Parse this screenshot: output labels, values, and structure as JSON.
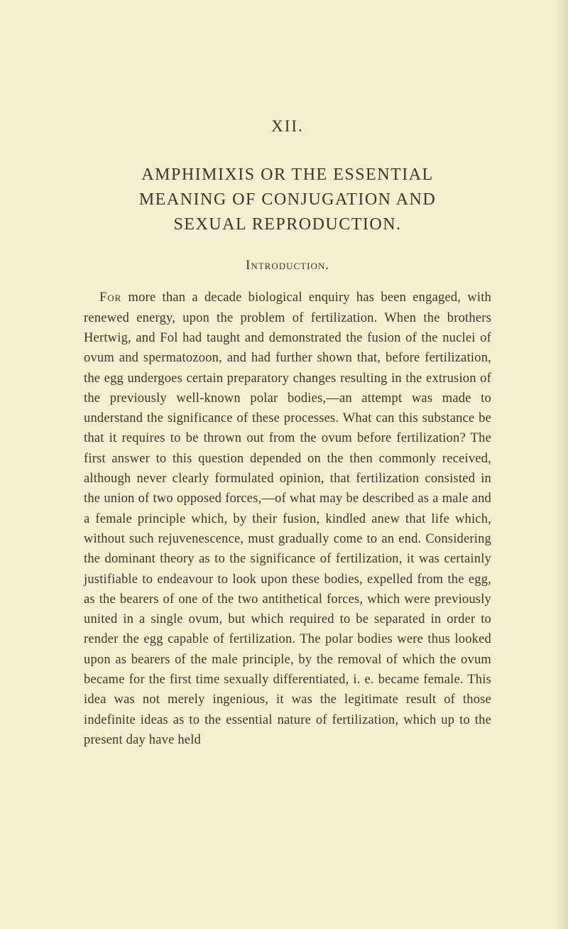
{
  "page": {
    "background_color": "#f5efd2",
    "text_color": "#3a3628",
    "font_family": "Georgia, 'Times New Roman', serif"
  },
  "chapter_number": "XII.",
  "title_line1": "AMPHIMIXIS OR THE ESSENTIAL",
  "title_line2": "MEANING OF CONJUGATION AND",
  "title_line3": "SEXUAL REPRODUCTION.",
  "subtitle": "Introduction.",
  "first_word": "For",
  "body_text": " more than a decade biological enquiry has been engaged, with renewed energy, upon the problem of fertilization. When the brothers Hertwig, and Fol had taught and demonstrated the fusion of the nuclei of ovum and spermatozoon, and had further shown that, before fertilization, the egg undergoes certain preparatory changes resulting in the extrusion of the previously well-known polar bodies,—an attempt was made to understand the significance of these processes. What can this substance be that it requires to be thrown out from the ovum before fertilization? The first answer to this question depended on the then commonly received, although never clearly formulated opinion, that fertilization consisted in the union of two opposed forces,—of what may be described as a male and a female principle which, by their fusion, kindled anew that life which, without such rejuvenescence, must gradually come to an end. Considering the dominant theory as to the significance of fertilization, it was certainly justifiable to endeavour to look upon these bodies, expelled from the egg, as the bearers of one of the two antithetical forces, which were previously united in a single ovum, but which required to be separated in order to render the egg capable of fertilization. The polar bodies were thus looked upon as bearers of the male principle, by the removal of which the ovum became for the first time sexually differentiated, i. e. became female. This idea was not merely ingenious, it was the legitimate result of those indefinite ideas as to the essential nature of fertilization, which up to the present day have held",
  "typography": {
    "chapter_number_fontsize": 23,
    "title_fontsize": 24,
    "subtitle_fontsize": 19,
    "body_fontsize": 18.5,
    "body_lineheight": 1.53,
    "title_letterspacing": 1.5,
    "text_indent": 22
  }
}
